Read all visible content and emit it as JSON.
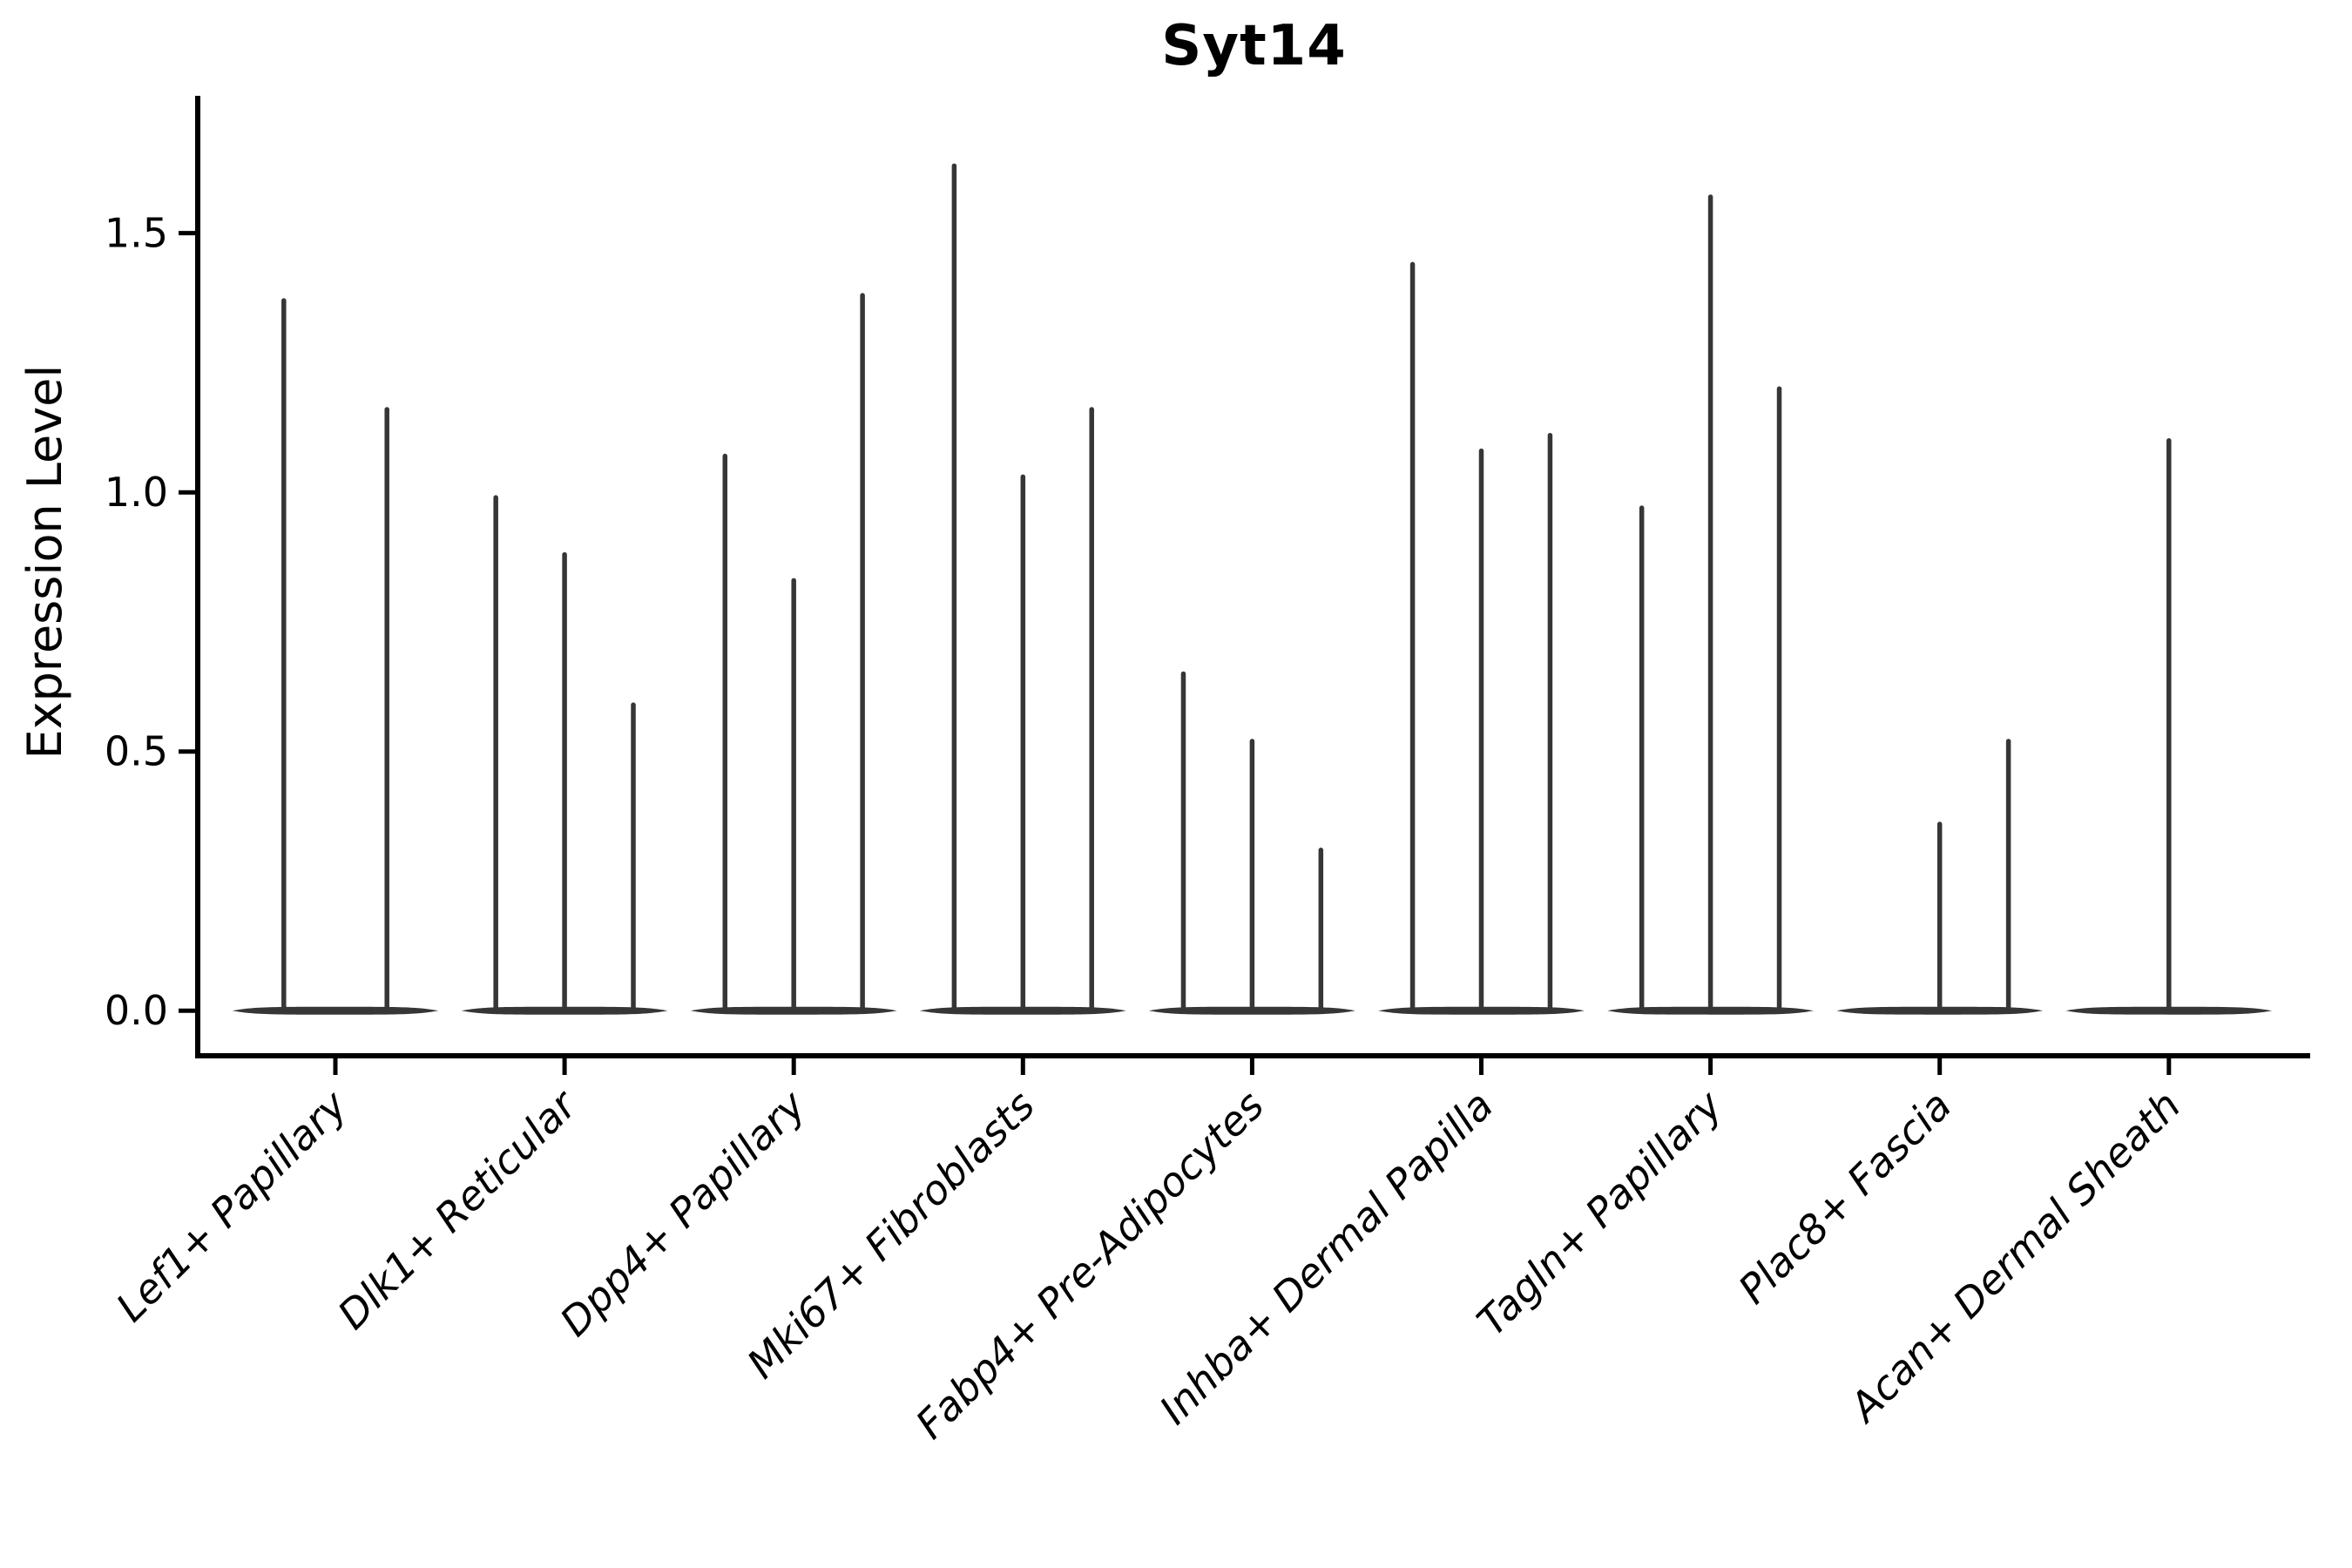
{
  "title": "Syt14",
  "colors": {
    "violin": "#363636",
    "axis": "#000000",
    "text": "#000000",
    "background": "#ffffff"
  },
  "chart_data": {
    "type": "violin",
    "title": "Syt14",
    "xlabel": "",
    "ylabel": "Expression Level",
    "grid": false,
    "legend": null,
    "ylim": [
      -0.087,
      1.765
    ],
    "yticks": [
      "0.0",
      "0.5",
      "1.0",
      "1.5"
    ],
    "base_halfwidth": 0.45,
    "categories": [
      "Lef1+ Papillary",
      "Dlk1+ Reticular",
      "Dpp4+ Papillary",
      "Mki67+ Fibroblasts",
      "Fabp4+ Pre-Adipocytes",
      "Inhba+ Dermal Papilla",
      "Tagln+ Papillary",
      "Plac8+ Fascia",
      "Acan+ Dermal Sheath"
    ],
    "groups": [
      {
        "category": "Lef1+ Papillary",
        "violins": [
          {
            "offset": -0.225,
            "max": 1.37
          },
          {
            "offset": 0.225,
            "max": 1.16
          }
        ]
      },
      {
        "category": "Dlk1+ Reticular",
        "violins": [
          {
            "offset": -0.3,
            "max": 0.99
          },
          {
            "offset": 0.0,
            "max": 0.88
          },
          {
            "offset": 0.3,
            "max": 0.59
          }
        ]
      },
      {
        "category": "Dpp4+ Papillary",
        "violins": [
          {
            "offset": -0.3,
            "max": 1.07
          },
          {
            "offset": 0.0,
            "max": 0.83
          },
          {
            "offset": 0.3,
            "max": 1.38
          }
        ]
      },
      {
        "category": "Mki67+ Fibroblasts",
        "violins": [
          {
            "offset": -0.3,
            "max": 1.63
          },
          {
            "offset": 0.0,
            "max": 1.03
          },
          {
            "offset": 0.3,
            "max": 1.16
          }
        ]
      },
      {
        "category": "Fabp4+ Pre-Adipocytes",
        "violins": [
          {
            "offset": -0.3,
            "max": 0.65
          },
          {
            "offset": 0.0,
            "max": 0.52
          },
          {
            "offset": 0.3,
            "max": 0.31
          }
        ]
      },
      {
        "category": "Inhba+ Dermal Papilla",
        "violins": [
          {
            "offset": -0.3,
            "max": 1.44
          },
          {
            "offset": 0.0,
            "max": 1.08
          },
          {
            "offset": 0.3,
            "max": 1.11
          }
        ]
      },
      {
        "category": "Tagln+ Papillary",
        "violins": [
          {
            "offset": -0.3,
            "max": 0.97
          },
          {
            "offset": 0.0,
            "max": 1.57
          },
          {
            "offset": 0.3,
            "max": 1.2
          }
        ]
      },
      {
        "category": "Plac8+ Fascia",
        "violins": [
          {
            "offset": 0.0,
            "max": 0.36
          },
          {
            "offset": 0.3,
            "max": 0.52
          }
        ]
      },
      {
        "category": "Acan+ Dermal Sheath",
        "violins": [
          {
            "offset": 0.0,
            "max": 1.1
          }
        ]
      }
    ]
  }
}
